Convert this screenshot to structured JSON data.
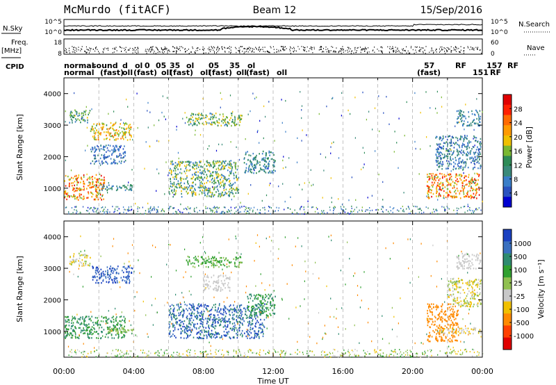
{
  "header": {
    "station": "McMurdo (fitACF)",
    "beam": "Beam 12",
    "date": "15/Sep/2016"
  },
  "top_panels": {
    "nsky_label": "N.Sky",
    "nsearch_label": "N.Search",
    "nsky_ticks": [
      "10^5",
      "10^0"
    ],
    "nsearch_ticks": [
      "10^5",
      "10^0"
    ],
    "freq_label": "Freq.",
    "freq_unit": "[MHz]",
    "freq_ticks": [
      "18",
      "8"
    ],
    "nave_label": "Nave",
    "nave_ticks": [
      "60",
      "0"
    ],
    "cpid_label": "CPID",
    "cpid_row1": [
      "normal",
      "sound",
      "d",
      "ol",
      "0",
      "05",
      "35",
      "ol",
      "05",
      "35",
      "ol",
      "57",
      "RF",
      "157",
      "RF"
    ],
    "cpid_row2": [
      "normal",
      "(fast)",
      "oll",
      "(fast)",
      "oll",
      "(fast)",
      "oll",
      "(fast)",
      "oll",
      "(fast)",
      "oll",
      "(fast)",
      "151",
      "RF"
    ]
  },
  "colors": {
    "power": [
      "#0000d0",
      "#2a52c0",
      "#3a7ec8",
      "#3a8a7a",
      "#2e8b57",
      "#7ab832",
      "#f0c000",
      "#ff9a00",
      "#ff6a00",
      "#ff2000",
      "#e00000"
    ],
    "velocity": [
      "#e00000",
      "#ff4000",
      "#ff8a00",
      "#f0c000",
      "#c8c8c8",
      "#90c050",
      "#30a030",
      "#2e8b6f",
      "#3a70c0",
      "#1a40c0"
    ]
  },
  "chart_data": [
    {
      "type": "heatmap",
      "name": "power",
      "ylabel": "Slant Range [km]",
      "colorbar_label": "Power [dB]",
      "colorbar_ticks": [
        "28",
        "24",
        "20",
        "16",
        "12",
        "8",
        "4"
      ],
      "xlabel": "",
      "x_ticks": [
        "00:00",
        "04:00",
        "08:00",
        "12:00",
        "16:00",
        "20:00",
        "00:00"
      ],
      "y_ticks": [
        "4000",
        "3000",
        "2000",
        "1000"
      ],
      "xlim": [
        0,
        24
      ],
      "ylim": [
        180,
        4500
      ],
      "clim": [
        0,
        32
      ],
      "regions": [
        {
          "t": [
            0.0,
            2.3
          ],
          "r": [
            650,
            1450
          ],
          "v": [
            14,
            30
          ]
        },
        {
          "t": [
            2.0,
            4.0
          ],
          "r": [
            950,
            1150
          ],
          "v": [
            6,
            14
          ]
        },
        {
          "t": [
            0.3,
            1.5
          ],
          "r": [
            3100,
            3500
          ],
          "v": [
            8,
            18
          ]
        },
        {
          "t": [
            1.5,
            3.9
          ],
          "r": [
            2550,
            3100
          ],
          "v": [
            14,
            24
          ]
        },
        {
          "t": [
            1.5,
            3.5
          ],
          "r": [
            1800,
            2400
          ],
          "v": [
            4,
            10
          ]
        },
        {
          "t": [
            6.0,
            10.0
          ],
          "r": [
            750,
            1900
          ],
          "v": [
            6,
            20
          ]
        },
        {
          "t": [
            7.0,
            10.2
          ],
          "r": [
            3000,
            3400
          ],
          "v": [
            8,
            20
          ]
        },
        {
          "t": [
            10.3,
            12.1
          ],
          "r": [
            1500,
            2200
          ],
          "v": [
            6,
            14
          ]
        },
        {
          "t": [
            20.8,
            23.8
          ],
          "r": [
            700,
            1500
          ],
          "v": [
            14,
            30
          ]
        },
        {
          "t": [
            21.3,
            23.9
          ],
          "r": [
            1600,
            2700
          ],
          "v": [
            4,
            12
          ]
        },
        {
          "t": [
            22.5,
            23.9
          ],
          "r": [
            3000,
            3500
          ],
          "v": [
            6,
            12
          ]
        }
      ]
    },
    {
      "type": "heatmap",
      "name": "velocity",
      "ylabel": "Slant Range [km]",
      "colorbar_label": "Velocity [m s⁻¹]",
      "colorbar_ticks": [
        "1000",
        "500",
        "100",
        "25",
        "-25",
        "-100",
        "-500",
        "-1000"
      ],
      "xlabel": "Time UT",
      "x_ticks": [
        "00:00",
        "04:00",
        "08:00",
        "12:00",
        "16:00",
        "20:00",
        "00:00"
      ],
      "y_ticks": [
        "4000",
        "3000",
        "2000",
        "1000"
      ],
      "xlim": [
        0,
        24
      ],
      "ylim": [
        180,
        4500
      ],
      "clim": [
        -1000,
        1000
      ],
      "regions": [
        {
          "t": [
            0.0,
            3.5
          ],
          "r": [
            800,
            1500
          ],
          "v": [
            100,
            500
          ]
        },
        {
          "t": [
            2.5,
            4.0
          ],
          "r": [
            950,
            1150
          ],
          "v": [
            25,
            100
          ]
        },
        {
          "t": [
            0.3,
            1.5
          ],
          "r": [
            3100,
            3500
          ],
          "v": [
            -100,
            100
          ]
        },
        {
          "t": [
            1.6,
            3.9
          ],
          "r": [
            2550,
            3100
          ],
          "v": [
            500,
            1000
          ]
        },
        {
          "t": [
            6.0,
            11.5
          ],
          "r": [
            800,
            1900
          ],
          "v": [
            300,
            1000
          ]
        },
        {
          "t": [
            7.0,
            10.2
          ],
          "r": [
            3050,
            3400
          ],
          "v": [
            25,
            300
          ]
        },
        {
          "t": [
            8.0,
            9.5
          ],
          "r": [
            2300,
            2800
          ],
          "v": [
            -25,
            25
          ]
        },
        {
          "t": [
            10.5,
            12.1
          ],
          "r": [
            1500,
            2200
          ],
          "v": [
            100,
            500
          ]
        },
        {
          "t": [
            20.8,
            22.6
          ],
          "r": [
            700,
            1900
          ],
          "v": [
            -500,
            -100
          ]
        },
        {
          "t": [
            21.5,
            23.9
          ],
          "r": [
            950,
            1150
          ],
          "v": [
            -100,
            25
          ]
        },
        {
          "t": [
            22.0,
            23.9
          ],
          "r": [
            1800,
            2700
          ],
          "v": [
            -100,
            100
          ]
        },
        {
          "t": [
            22.5,
            23.9
          ],
          "r": [
            3000,
            3500
          ],
          "v": [
            -25,
            25
          ]
        }
      ]
    }
  ]
}
